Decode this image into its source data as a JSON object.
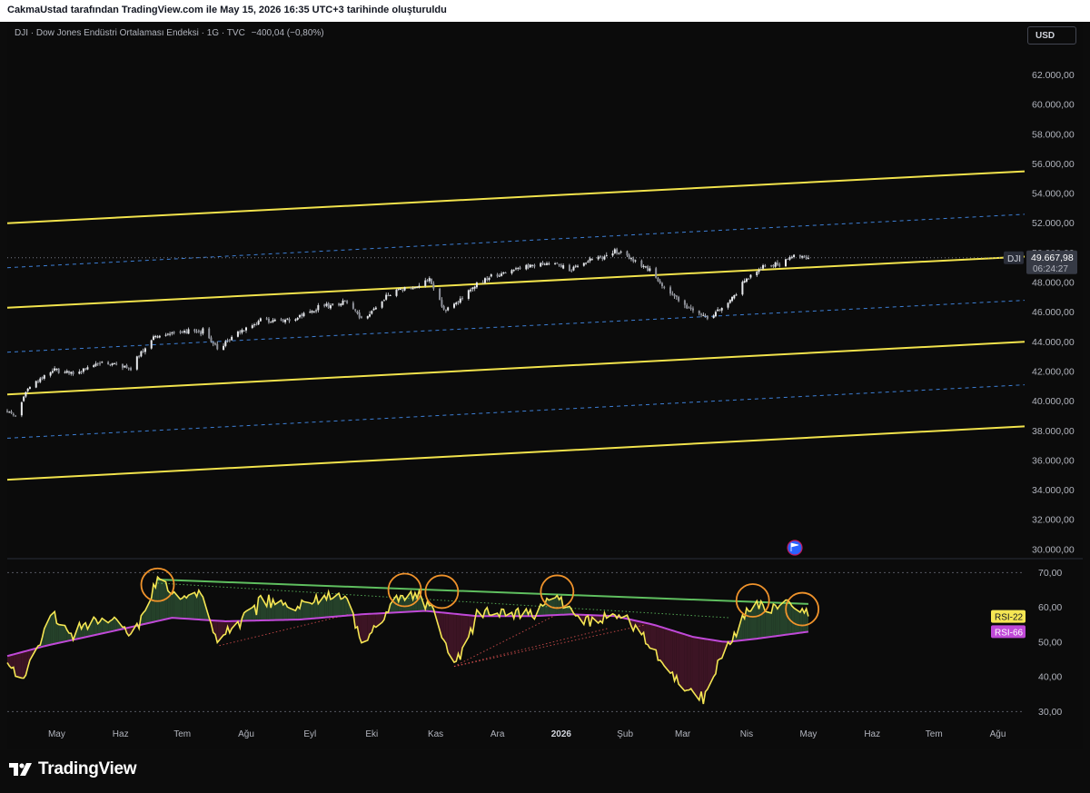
{
  "header": {
    "caption": "CakmaUstad tarafından TradingView.com ile May 15, 2026 16:35 UTC+3 tarihinde oluşturuldu"
  },
  "legend": {
    "symbol_info": "DJI · Dow Jones Endüstri Ortalaması Endeksi · 1G · TVC",
    "change": "−400,04 (−0,80%)"
  },
  "currency_button": "USD",
  "brand": {
    "name": "TradingView",
    "icon": "tradingview-logo-icon"
  },
  "colors": {
    "background": "#0b0b0b",
    "channel": "#f2e34c",
    "dashed": "#3d7fd6",
    "candle": "#d1d4dc",
    "rsi_fast": "#f5e653",
    "rsi_slow": "#c049d8",
    "circle": "#f0932b",
    "trend_green": "#5fbf5f",
    "trend_red": "#d85050",
    "bull_fill": "#25412a",
    "bear_fill": "#3c1424"
  },
  "chart_data": [
    {
      "type": "candlestick",
      "title": "DJI · Dow Jones Endüstri Ortalaması Endeksi · 1G · TVC",
      "x_tick_labels": [
        "May",
        "Haz",
        "Tem",
        "Ağu",
        "Eyl",
        "Eki",
        "Kas",
        "Ara",
        "2026",
        "Şub",
        "Mar",
        "Nis",
        "May",
        "Haz",
        "Tem",
        "Ağu"
      ],
      "y_tick_labels": [
        "62.000,00",
        "60.000,00",
        "58.000,00",
        "56.000,00",
        "54.000,00",
        "52.000,00",
        "50.000,00",
        "48.000,00",
        "46.000,00",
        "44.000,00",
        "42.000,00",
        "40.000,00",
        "38.000,00",
        "36.000,00",
        "34.000,00",
        "32.000,00",
        "30.000,00"
      ],
      "ylim": [
        29500,
        63500
      ],
      "xlim": [
        "2025-04-21",
        "2026-08-28"
      ],
      "last_price": {
        "label": "DJI",
        "value": 49667.98,
        "value_label": "49.667,98",
        "countdown": "06:24:27"
      },
      "series": [
        {
          "name": "DJI",
          "close_anchors": [
            [
              "2025-04-21",
              39400
            ],
            [
              "2025-04-25",
              39000
            ],
            [
              "2025-05-01",
              40900
            ],
            [
              "2025-05-14",
              42200
            ],
            [
              "2025-05-23",
              41800
            ],
            [
              "2025-06-05",
              42600
            ],
            [
              "2025-06-20",
              42200
            ],
            [
              "2025-07-01",
              44300
            ],
            [
              "2025-07-10",
              44700
            ],
            [
              "2025-07-25",
              44700
            ],
            [
              "2025-08-01",
              43600
            ],
            [
              "2025-08-22",
              45500
            ],
            [
              "2025-09-05",
              45400
            ],
            [
              "2025-09-19",
              46300
            ],
            [
              "2025-10-03",
              46700
            ],
            [
              "2025-10-10",
              45500
            ],
            [
              "2025-10-28",
              47700
            ],
            [
              "2025-11-04",
              47500
            ],
            [
              "2025-11-12",
              48200
            ],
            [
              "2025-11-20",
              46000
            ],
            [
              "2025-12-04",
              47800
            ],
            [
              "2025-12-12",
              48400
            ],
            [
              "2025-12-24",
              48900
            ],
            [
              "2026-01-07",
              49300
            ],
            [
              "2026-01-20",
              48900
            ],
            [
              "2026-02-03",
              49700
            ],
            [
              "2026-02-10",
              50100
            ],
            [
              "2026-02-20",
              49500
            ],
            [
              "2026-02-27",
              48800
            ],
            [
              "2026-03-06",
              47700
            ],
            [
              "2026-03-16",
              46500
            ],
            [
              "2026-03-27",
              45500
            ],
            [
              "2026-04-07",
              46800
            ],
            [
              "2026-04-15",
              48300
            ],
            [
              "2026-04-23",
              49100
            ],
            [
              "2026-05-01",
              49300
            ],
            [
              "2026-05-08",
              49900
            ],
            [
              "2026-05-15",
              49668
            ]
          ]
        }
      ],
      "channel_lines": [
        {
          "style": "solid",
          "from": [
            "2025-04-21",
            52000
          ],
          "to": [
            "2026-08-28",
            55500
          ]
        },
        {
          "style": "solid",
          "from": [
            "2025-04-21",
            46300
          ],
          "to": [
            "2026-08-28",
            49750
          ]
        },
        {
          "style": "solid",
          "from": [
            "2025-04-21",
            40450
          ],
          "to": [
            "2026-08-28",
            44000
          ]
        },
        {
          "style": "solid",
          "from": [
            "2025-04-21",
            34700
          ],
          "to": [
            "2026-08-28",
            38300
          ]
        },
        {
          "style": "dashed",
          "from": [
            "2025-04-21",
            49000
          ],
          "to": [
            "2026-08-28",
            52600
          ]
        },
        {
          "style": "dashed",
          "from": [
            "2025-04-21",
            43300
          ],
          "to": [
            "2026-08-28",
            46800
          ]
        },
        {
          "style": "dashed",
          "from": [
            "2025-04-21",
            37500
          ],
          "to": [
            "2026-08-28",
            41100
          ]
        }
      ],
      "markers": [
        {
          "date": "2026-05-04",
          "icon": "us-flag-event-icon"
        }
      ]
    },
    {
      "type": "line",
      "title": "RSI",
      "y_tick_labels": [
        "70,00",
        "60,00",
        "50,00",
        "40,00",
        "30,00"
      ],
      "ylim": [
        27.5,
        73.5
      ],
      "reference_lines": [
        70,
        30
      ],
      "series": [
        {
          "name": "RSI-22",
          "color": "#f5e653",
          "anchors": [
            [
              "2025-04-21",
              45
            ],
            [
              "2025-04-28",
              38
            ],
            [
              "2025-05-05",
              48
            ],
            [
              "2025-05-13",
              58
            ],
            [
              "2025-05-22",
              52
            ],
            [
              "2025-06-06",
              57
            ],
            [
              "2025-06-15",
              55
            ],
            [
              "2025-06-20",
              51
            ],
            [
              "2025-07-03",
              68
            ],
            [
              "2025-07-12",
              63
            ],
            [
              "2025-07-24",
              64
            ],
            [
              "2025-08-02",
              49
            ],
            [
              "2025-08-14",
              58
            ],
            [
              "2025-08-24",
              62
            ],
            [
              "2025-09-06",
              60
            ],
            [
              "2025-09-20",
              62
            ],
            [
              "2025-10-04",
              64
            ],
            [
              "2025-10-10",
              49
            ],
            [
              "2025-10-28",
              62
            ],
            [
              "2025-11-04",
              63
            ],
            [
              "2025-11-13",
              60
            ],
            [
              "2025-11-24",
              43
            ],
            [
              "2025-12-05",
              57
            ],
            [
              "2025-12-16",
              59
            ],
            [
              "2025-12-30",
              58
            ],
            [
              "2026-01-13",
              64
            ],
            [
              "2026-01-24",
              56
            ],
            [
              "2026-02-06",
              57
            ],
            [
              "2026-02-14",
              58
            ],
            [
              "2026-02-20",
              54
            ],
            [
              "2026-03-04",
              45
            ],
            [
              "2026-03-13",
              38
            ],
            [
              "2026-03-25",
              33
            ],
            [
              "2026-04-01",
              44
            ],
            [
              "2026-04-08",
              51
            ],
            [
              "2026-04-18",
              62
            ],
            [
              "2026-04-28",
              59
            ],
            [
              "2026-05-08",
              61
            ],
            [
              "2026-05-15",
              58
            ]
          ]
        },
        {
          "name": "RSI-66",
          "color": "#c049d8",
          "anchors": [
            [
              "2025-04-21",
              46
            ],
            [
              "2025-05-10",
              49
            ],
            [
              "2025-06-10",
              53
            ],
            [
              "2025-07-10",
              57
            ],
            [
              "2025-08-05",
              56
            ],
            [
              "2025-09-10",
              56.5
            ],
            [
              "2025-10-10",
              58
            ],
            [
              "2025-11-10",
              59
            ],
            [
              "2025-12-05",
              57.5
            ],
            [
              "2026-01-01",
              57.5
            ],
            [
              "2026-01-20",
              58
            ],
            [
              "2026-02-10",
              57.5
            ],
            [
              "2026-03-01",
              55
            ],
            [
              "2026-03-20",
              51.5
            ],
            [
              "2026-04-05",
              50
            ],
            [
              "2026-04-20",
              51
            ],
            [
              "2026-05-15",
              53
            ]
          ]
        }
      ],
      "trend_lines": [
        {
          "color": "green",
          "style": "solid",
          "from": [
            "2025-07-03",
            68
          ],
          "to": [
            "2026-05-15",
            61
          ]
        },
        {
          "color": "green",
          "style": "dotted",
          "from": [
            "2025-07-03",
            67
          ],
          "to": [
            "2026-04-07",
            57
          ]
        },
        {
          "color": "red",
          "style": "dotted",
          "from": [
            "2025-08-02",
            49
          ],
          "to": [
            "2025-10-04",
            58
          ]
        },
        {
          "color": "red",
          "style": "dotted",
          "from": [
            "2025-11-24",
            43
          ],
          "to": [
            "2026-01-13",
            58
          ]
        },
        {
          "color": "red",
          "style": "dotted",
          "from": [
            "2025-11-24",
            43
          ],
          "to": [
            "2026-02-07",
            54
          ]
        },
        {
          "color": "red",
          "style": "dotted",
          "from": [
            "2025-11-24",
            43
          ],
          "to": [
            "2026-02-25",
            55
          ]
        }
      ],
      "highlight_circles": [
        [
          "2025-07-03",
          66.5
        ],
        [
          "2025-10-31",
          65
        ],
        [
          "2025-11-18",
          64.5
        ],
        [
          "2026-01-13",
          64.5
        ],
        [
          "2026-04-18",
          62
        ],
        [
          "2026-05-12",
          59.5
        ]
      ]
    }
  ]
}
